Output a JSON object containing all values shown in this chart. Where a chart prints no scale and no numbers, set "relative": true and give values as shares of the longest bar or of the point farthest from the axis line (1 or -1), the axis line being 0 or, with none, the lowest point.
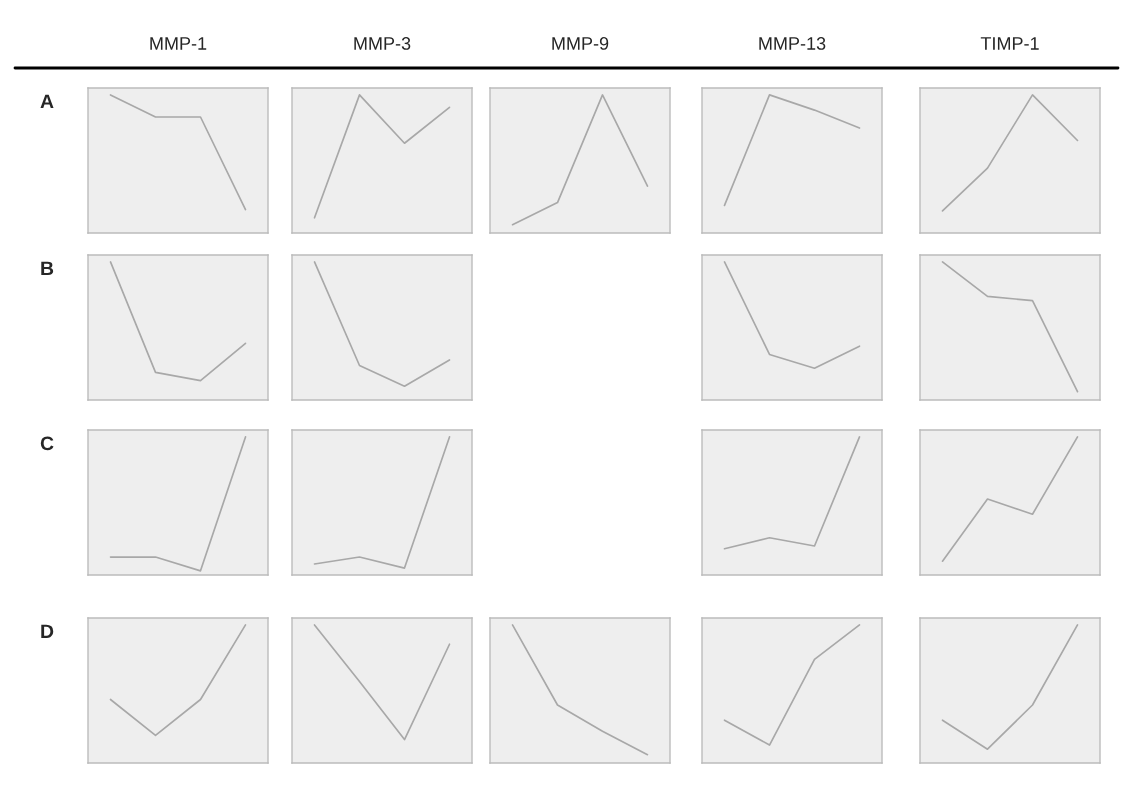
{
  "chart_data": [
    {
      "type": "line",
      "title": "MMP-1",
      "annotations": [
        "A"
      ],
      "relative": true,
      "categories": [
        null,
        null,
        null,
        null
      ],
      "series": [
        {
          "color": "#a8a8a8",
          "values": [
            1,
            0.84,
            0.84,
            0.17
          ]
        }
      ]
    },
    {
      "type": "line",
      "title": "MMP-3",
      "relative": true,
      "categories": [
        null,
        null,
        null,
        null
      ],
      "series": [
        {
          "color": "#a8a8a8",
          "values": [
            0.11,
            1,
            0.65,
            0.91
          ]
        }
      ]
    },
    {
      "type": "line",
      "title": "MMP-9",
      "relative": true,
      "categories": [
        null,
        null,
        null,
        null
      ],
      "series": [
        {
          "color": "#a8a8a8",
          "values": [
            0.06,
            0.22,
            1,
            0.34
          ]
        }
      ]
    },
    {
      "type": "line",
      "title": "MMP-13",
      "relative": true,
      "categories": [
        null,
        null,
        null,
        null
      ],
      "series": [
        {
          "color": "#a8a8a8",
          "values": [
            0.2,
            1,
            0.89,
            0.76
          ]
        }
      ]
    },
    {
      "type": "line",
      "title": "TIMP-1",
      "relative": true,
      "categories": [
        null,
        null,
        null,
        null
      ],
      "series": [
        {
          "color": "#a8a8a8",
          "values": [
            0.16,
            0.47,
            1,
            0.67
          ]
        }
      ]
    },
    {
      "type": "line",
      "annotations": [
        "B"
      ],
      "relative": true,
      "categories": [
        null,
        null,
        null,
        null
      ],
      "series": [
        {
          "color": "#a8a8a8",
          "values": [
            1,
            0.2,
            0.14,
            0.41
          ]
        }
      ]
    },
    {
      "type": "line",
      "relative": true,
      "categories": [
        null,
        null,
        null,
        null
      ],
      "series": [
        {
          "color": "#a8a8a8",
          "values": [
            1,
            0.25,
            0.1,
            0.29
          ]
        }
      ]
    },
    {
      "type": "line",
      "relative": true,
      "categories": [
        null,
        null,
        null,
        null
      ],
      "series": [
        {
          "color": "#a8a8a8",
          "values": [
            1,
            0.33,
            0.23,
            0.39
          ]
        }
      ]
    },
    {
      "type": "line",
      "relative": true,
      "categories": [
        null,
        null,
        null,
        null
      ],
      "series": [
        {
          "color": "#a8a8a8",
          "values": [
            1,
            0.75,
            0.72,
            0.06
          ]
        }
      ]
    },
    {
      "type": "line",
      "annotations": [
        "C"
      ],
      "relative": true,
      "categories": [
        null,
        null,
        null,
        null
      ],
      "series": [
        {
          "color": "#a8a8a8",
          "values": [
            0.13,
            0.13,
            0.03,
            1
          ]
        }
      ]
    },
    {
      "type": "line",
      "relative": true,
      "categories": [
        null,
        null,
        null,
        null
      ],
      "series": [
        {
          "color": "#a8a8a8",
          "values": [
            0.08,
            0.13,
            0.05,
            1
          ]
        }
      ]
    },
    {
      "type": "line",
      "relative": true,
      "categories": [
        null,
        null,
        null,
        null
      ],
      "series": [
        {
          "color": "#a8a8a8",
          "values": [
            0.19,
            0.27,
            0.21,
            1
          ]
        }
      ]
    },
    {
      "type": "line",
      "relative": true,
      "categories": [
        null,
        null,
        null,
        null
      ],
      "series": [
        {
          "color": "#a8a8a8",
          "values": [
            0.1,
            0.55,
            0.44,
            1
          ]
        }
      ]
    },
    {
      "type": "line",
      "annotations": [
        "D"
      ],
      "relative": true,
      "categories": [
        null,
        null,
        null,
        null
      ],
      "series": [
        {
          "color": "#a8a8a8",
          "values": [
            0.46,
            0.2,
            0.46,
            1
          ]
        }
      ]
    },
    {
      "type": "line",
      "relative": true,
      "categories": [
        null,
        null,
        null,
        null
      ],
      "series": [
        {
          "color": "#a8a8a8",
          "values": [
            1,
            0.59,
            0.17,
            0.86
          ]
        }
      ]
    },
    {
      "type": "line",
      "relative": true,
      "categories": [
        null,
        null,
        null,
        null
      ],
      "series": [
        {
          "color": "#a8a8a8",
          "values": [
            1,
            0.42,
            0.23,
            0.06
          ]
        }
      ]
    },
    {
      "type": "line",
      "relative": true,
      "categories": [
        null,
        null,
        null,
        null
      ],
      "series": [
        {
          "color": "#a8a8a8",
          "values": [
            0.31,
            0.13,
            0.75,
            1
          ]
        }
      ]
    },
    {
      "type": "line",
      "relative": true,
      "categories": [
        null,
        null,
        null,
        null
      ],
      "series": [
        {
          "color": "#a8a8a8",
          "values": [
            0.31,
            0.1,
            0.42,
            1
          ]
        }
      ]
    }
  ]
}
